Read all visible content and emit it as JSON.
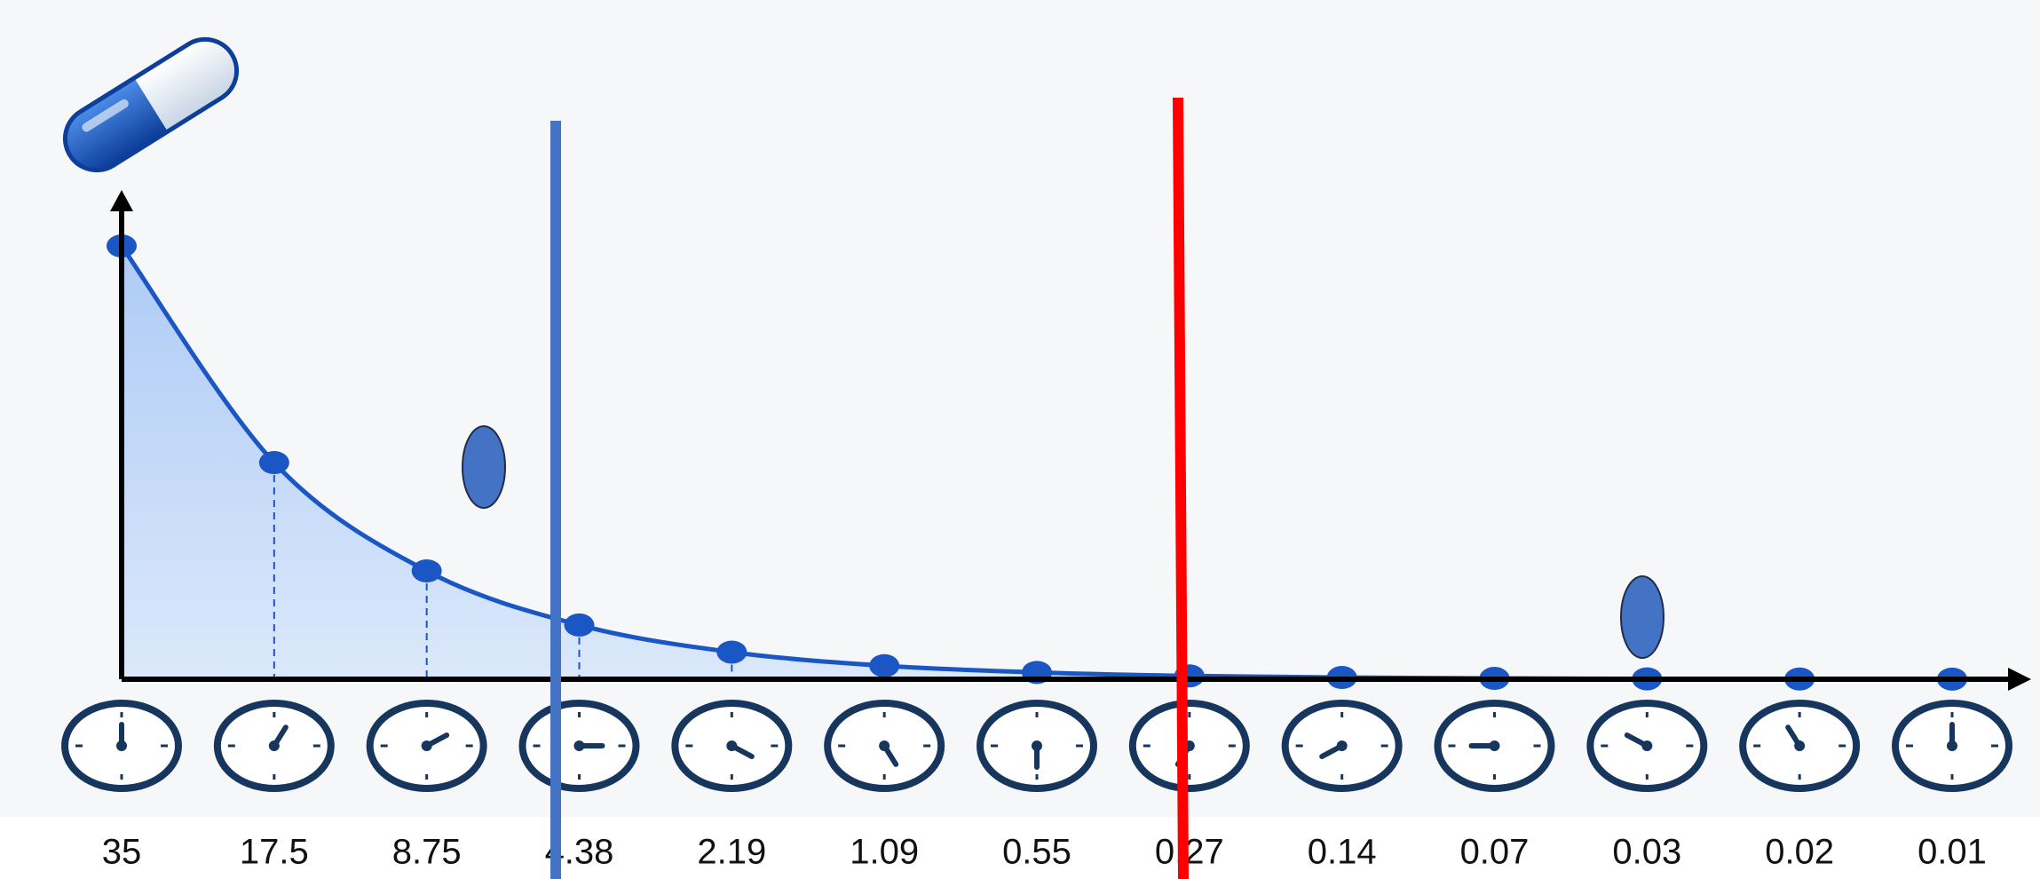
{
  "chart_data": {
    "type": "line",
    "values": [
      35,
      17.5,
      8.75,
      4.38,
      2.19,
      1.09,
      0.55,
      0.27,
      0.14,
      0.07,
      0.03,
      0.02,
      0.01
    ],
    "color": "#1a56c4"
  }
}
